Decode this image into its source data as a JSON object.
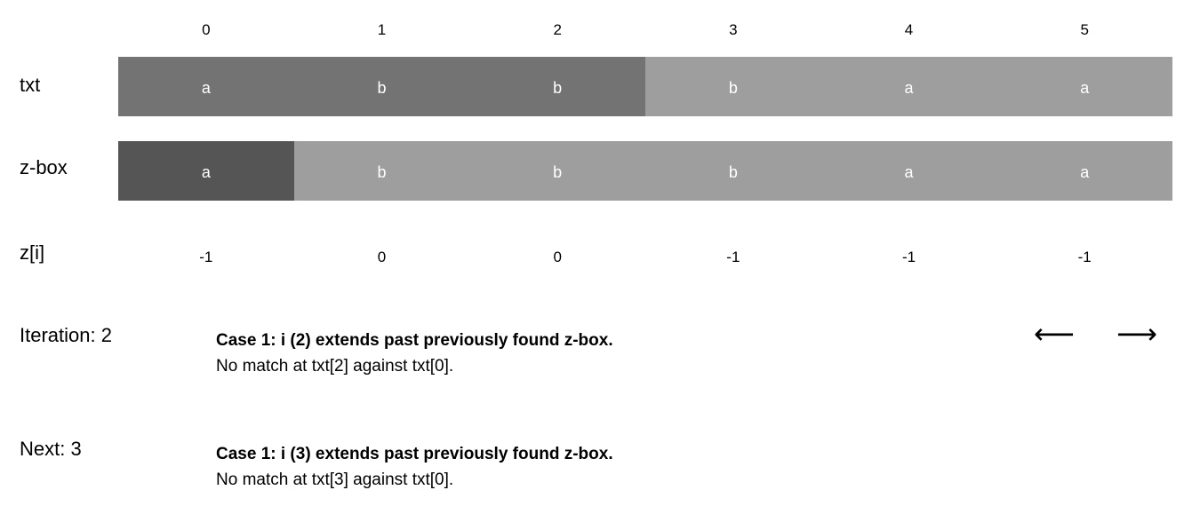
{
  "labels": {
    "txt": "txt",
    "zbox": "z-box",
    "z": "z[i]"
  },
  "indices": [
    "0",
    "1",
    "2",
    "3",
    "4",
    "5"
  ],
  "txt": [
    "a",
    "b",
    "b",
    "b",
    "a",
    "a"
  ],
  "zbox": [
    "a",
    "b",
    "b",
    "b",
    "a",
    "a"
  ],
  "z_values": [
    "-1",
    "0",
    "0",
    "-1",
    "-1",
    "-1"
  ],
  "colors": {
    "highlight": "#737373",
    "normal": "#9e9e9e",
    "zbox_active": "#555555"
  },
  "txt_highlight": [
    true,
    true,
    true,
    false,
    false,
    false
  ],
  "zbox_active": [
    true,
    false,
    false,
    false,
    false,
    false
  ],
  "iteration": {
    "label": "Iteration: 2",
    "case_title": "Case 1: i (2) extends past previously found z-box.",
    "case_detail": "No match at txt[2] against txt[0]."
  },
  "next": {
    "label": "Next: 3",
    "case_title": "Case 1: i (3) extends past previously found z-box.",
    "case_detail": "No match at txt[3] against txt[0]."
  },
  "nav": {
    "prev": "⟵",
    "next": "⟶"
  }
}
